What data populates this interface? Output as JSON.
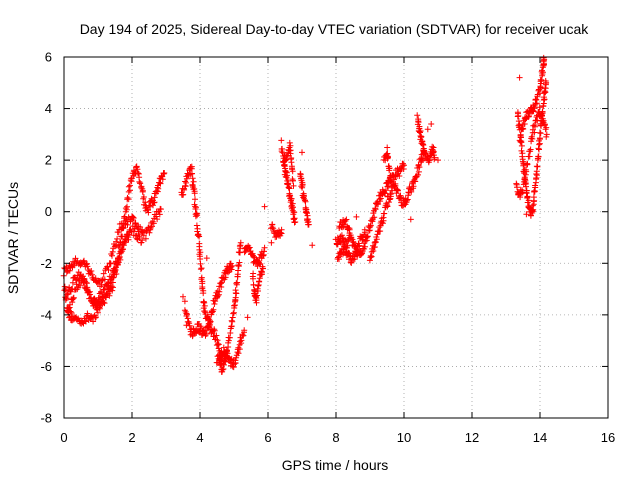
{
  "chart_data": {
    "type": "scatter",
    "title": "Day 194 of 2025, Sidereal Day-to-day VTEC variation (SDTVAR) for receiver ucak",
    "xlabel": "GPS time / hours",
    "ylabel": "SDTVAR / TECUs",
    "xlim": [
      0,
      16
    ],
    "ylim": [
      -8,
      6
    ],
    "x_ticks": [
      0,
      2,
      4,
      6,
      8,
      10,
      12,
      14,
      16
    ],
    "y_ticks": [
      -8,
      -6,
      -4,
      -2,
      0,
      2,
      4,
      6
    ],
    "grid": true,
    "marker": "+",
    "series_color": "#ff0000",
    "trace_segments": [
      [
        [
          0.0,
          -2.6
        ],
        [
          0.08,
          -3.6
        ],
        [
          0.15,
          -4.0
        ],
        [
          0.25,
          -4.1
        ],
        [
          0.4,
          -4.2
        ],
        [
          0.55,
          -4.2
        ],
        [
          0.7,
          -4.1
        ],
        [
          0.85,
          -4.1
        ],
        [
          1.0,
          -3.8
        ],
        [
          1.15,
          -3.4
        ],
        [
          1.3,
          -3.0
        ],
        [
          1.45,
          -2.5
        ],
        [
          1.55,
          -2.0
        ],
        [
          1.65,
          -1.2
        ],
        [
          1.75,
          -0.5
        ],
        [
          1.85,
          0.3
        ],
        [
          1.95,
          1.0
        ],
        [
          2.05,
          1.6
        ],
        [
          2.15,
          1.6
        ],
        [
          2.25,
          1.2
        ],
        [
          2.35,
          0.5
        ],
        [
          2.45,
          0.0
        ],
        [
          2.55,
          0.3
        ],
        [
          2.65,
          0.5
        ],
        [
          2.75,
          0.9
        ],
        [
          2.85,
          1.3
        ],
        [
          2.95,
          1.5
        ]
      ],
      [
        [
          0.02,
          -2.3
        ],
        [
          0.15,
          -2.2
        ],
        [
          0.3,
          -2.0
        ],
        [
          0.45,
          -1.9
        ],
        [
          0.6,
          -2.0
        ],
        [
          0.75,
          -2.3
        ],
        [
          0.9,
          -2.6
        ],
        [
          1.05,
          -2.8
        ],
        [
          1.2,
          -2.5
        ],
        [
          1.35,
          -2.0
        ],
        [
          1.5,
          -1.3
        ],
        [
          1.65,
          -0.6
        ],
        [
          1.8,
          -0.5
        ],
        [
          1.95,
          -0.3
        ],
        [
          2.1,
          -0.4
        ],
        [
          2.25,
          -0.8
        ],
        [
          2.4,
          -0.9
        ],
        [
          2.55,
          -0.6
        ],
        [
          2.7,
          -0.2
        ],
        [
          2.85,
          0.1
        ]
      ],
      [
        [
          0.05,
          -3.3
        ],
        [
          0.2,
          -3.0
        ],
        [
          0.35,
          -2.5
        ],
        [
          0.5,
          -2.4
        ],
        [
          0.65,
          -2.9
        ],
        [
          0.8,
          -3.3
        ],
        [
          0.95,
          -3.6
        ],
        [
          1.1,
          -3.5
        ],
        [
          1.25,
          -3.3
        ],
        [
          1.4,
          -3.0
        ],
        [
          1.55,
          -2.2
        ],
        [
          1.7,
          -1.5
        ],
        [
          1.85,
          -1.0
        ],
        [
          2.0,
          -0.7
        ],
        [
          2.15,
          -0.9
        ],
        [
          2.3,
          -1.1
        ]
      ],
      [
        [
          0.1,
          -3.8
        ],
        [
          0.25,
          -3.4
        ],
        [
          0.4,
          -2.9
        ],
        [
          0.55,
          -2.6
        ],
        [
          0.7,
          -3.0
        ],
        [
          0.85,
          -3.7
        ],
        [
          1.0,
          -3.5
        ],
        [
          1.15,
          -3.1
        ],
        [
          1.3,
          -2.7
        ],
        [
          1.45,
          -2.3
        ],
        [
          1.6,
          -1.8
        ],
        [
          1.75,
          -1.2
        ],
        [
          1.9,
          -0.9
        ]
      ],
      [
        [
          3.45,
          0.6
        ],
        [
          3.55,
          1.0
        ],
        [
          3.65,
          1.4
        ],
        [
          3.75,
          1.6
        ],
        [
          3.8,
          1.0
        ],
        [
          3.85,
          0.4
        ],
        [
          3.9,
          -0.2
        ],
        [
          3.95,
          -0.9
        ],
        [
          4.0,
          -1.7
        ],
        [
          4.05,
          -2.6
        ],
        [
          4.1,
          -3.4
        ],
        [
          4.15,
          -4.0
        ],
        [
          4.25,
          -4.3
        ],
        [
          4.35,
          -4.6
        ],
        [
          4.45,
          -4.8
        ],
        [
          4.55,
          -5.3
        ],
        [
          4.6,
          -5.9
        ],
        [
          4.65,
          -6.1
        ],
        [
          4.72,
          -5.8
        ],
        [
          4.8,
          -5.3
        ],
        [
          4.9,
          -4.6
        ],
        [
          5.0,
          -3.9
        ],
        [
          5.05,
          -3.3
        ],
        [
          5.1,
          -2.6
        ],
        [
          5.15,
          -1.8
        ],
        [
          5.2,
          -1.2
        ]
      ],
      [
        [
          3.55,
          -3.6
        ],
        [
          3.65,
          -4.3
        ],
        [
          3.75,
          -4.7
        ],
        [
          3.85,
          -4.6
        ],
        [
          3.95,
          -4.5
        ],
        [
          4.05,
          -4.6
        ],
        [
          4.15,
          -4.7
        ],
        [
          4.25,
          -4.4
        ],
        [
          4.35,
          -3.9
        ],
        [
          4.45,
          -3.4
        ],
        [
          4.55,
          -3.1
        ],
        [
          4.65,
          -2.7
        ],
        [
          4.75,
          -2.4
        ],
        [
          4.85,
          -2.2
        ],
        [
          4.95,
          -2.1
        ]
      ],
      [
        [
          4.5,
          -5.8
        ],
        [
          4.6,
          -5.6
        ],
        [
          4.7,
          -5.4
        ],
        [
          4.8,
          -5.6
        ],
        [
          4.9,
          -5.8
        ],
        [
          5.0,
          -5.9
        ],
        [
          5.1,
          -5.6
        ],
        [
          5.2,
          -5.0
        ],
        [
          5.3,
          -4.6
        ]
      ],
      [
        [
          5.3,
          -1.5
        ],
        [
          5.4,
          -1.3
        ],
        [
          5.5,
          -1.6
        ],
        [
          5.6,
          -1.9
        ],
        [
          5.7,
          -2.0
        ],
        [
          5.8,
          -1.8
        ],
        [
          5.9,
          -1.4
        ]
      ],
      [
        [
          5.55,
          -2.5
        ],
        [
          5.6,
          -3.1
        ],
        [
          5.65,
          -3.5
        ],
        [
          5.72,
          -2.9
        ],
        [
          5.8,
          -2.4
        ],
        [
          5.85,
          -2.2
        ]
      ],
      [
        [
          6.1,
          -0.6
        ],
        [
          6.2,
          -0.8
        ],
        [
          6.3,
          -0.9
        ],
        [
          6.4,
          -0.7
        ]
      ],
      [
        [
          6.4,
          2.6
        ],
        [
          6.45,
          2.0
        ],
        [
          6.5,
          1.6
        ],
        [
          6.55,
          1.3
        ],
        [
          6.6,
          1.0
        ],
        [
          6.65,
          0.6
        ],
        [
          6.7,
          0.3
        ],
        [
          6.75,
          -0.1
        ],
        [
          6.8,
          -0.4
        ]
      ],
      [
        [
          6.45,
          1.9
        ],
        [
          6.55,
          2.2
        ],
        [
          6.65,
          2.5
        ],
        [
          6.7,
          1.8
        ],
        [
          6.75,
          1.0
        ]
      ],
      [
        [
          6.95,
          1.6
        ],
        [
          7.0,
          1.0
        ],
        [
          7.05,
          0.6
        ],
        [
          7.1,
          0.2
        ],
        [
          7.15,
          -0.2
        ],
        [
          7.2,
          -0.5
        ]
      ],
      [
        [
          8.0,
          -1.2
        ],
        [
          8.1,
          -1.0
        ],
        [
          8.2,
          -1.1
        ],
        [
          8.3,
          -1.3
        ],
        [
          8.4,
          -1.0
        ],
        [
          8.5,
          -1.2
        ],
        [
          8.6,
          -1.5
        ],
        [
          8.7,
          -1.7
        ],
        [
          8.8,
          -1.4
        ],
        [
          8.9,
          -1.0
        ],
        [
          9.0,
          -0.6
        ],
        [
          9.1,
          -0.1
        ],
        [
          9.2,
          0.3
        ],
        [
          9.3,
          0.6
        ],
        [
          9.4,
          0.8
        ],
        [
          9.5,
          1.0
        ],
        [
          9.6,
          1.2
        ],
        [
          9.7,
          1.4
        ],
        [
          9.8,
          1.5
        ],
        [
          9.9,
          1.6
        ],
        [
          10.0,
          1.8
        ]
      ],
      [
        [
          8.05,
          -1.8
        ],
        [
          8.15,
          -1.6
        ],
        [
          8.25,
          -1.5
        ],
        [
          8.35,
          -1.6
        ],
        [
          8.45,
          -1.9
        ],
        [
          8.55,
          -1.7
        ],
        [
          8.65,
          -1.3
        ],
        [
          8.75,
          -1.0
        ],
        [
          8.85,
          -0.8
        ]
      ],
      [
        [
          8.1,
          -0.6
        ],
        [
          8.2,
          -0.5
        ],
        [
          8.3,
          -0.4
        ],
        [
          8.4,
          -0.7
        ]
      ],
      [
        [
          9.0,
          -1.8
        ],
        [
          9.1,
          -1.4
        ],
        [
          9.2,
          -1.0
        ],
        [
          9.3,
          -0.6
        ],
        [
          9.4,
          -0.2
        ],
        [
          9.5,
          0.3
        ],
        [
          9.6,
          0.7
        ],
        [
          9.7,
          1.0
        ],
        [
          9.8,
          0.8
        ],
        [
          9.9,
          0.5
        ],
        [
          10.0,
          0.3
        ],
        [
          10.1,
          0.6
        ],
        [
          10.2,
          0.9
        ],
        [
          10.3,
          1.2
        ],
        [
          10.4,
          1.6
        ],
        [
          10.5,
          2.0
        ],
        [
          10.6,
          2.3
        ]
      ],
      [
        [
          9.4,
          2.0
        ],
        [
          9.5,
          2.4
        ],
        [
          9.55,
          1.8
        ],
        [
          9.6,
          1.2
        ]
      ],
      [
        [
          10.4,
          3.6
        ],
        [
          10.45,
          3.2
        ],
        [
          10.5,
          2.8
        ],
        [
          10.55,
          2.5
        ],
        [
          10.6,
          2.2
        ],
        [
          10.7,
          2.0
        ],
        [
          10.8,
          2.2
        ],
        [
          10.85,
          2.5
        ],
        [
          10.9,
          2.1
        ]
      ],
      [
        [
          13.35,
          3.8
        ],
        [
          13.4,
          3.3
        ],
        [
          13.45,
          2.7
        ],
        [
          13.5,
          2.0
        ],
        [
          13.55,
          1.3
        ],
        [
          13.6,
          0.8
        ],
        [
          13.65,
          0.4
        ],
        [
          13.7,
          0.0
        ],
        [
          13.75,
          -0.1
        ],
        [
          13.8,
          0.2
        ],
        [
          13.85,
          0.8
        ],
        [
          13.9,
          1.5
        ],
        [
          13.95,
          2.2
        ],
        [
          14.0,
          2.9
        ],
        [
          14.05,
          3.6
        ],
        [
          14.1,
          4.2
        ],
        [
          14.15,
          4.6
        ],
        [
          14.18,
          5.0
        ]
      ],
      [
        [
          13.4,
          2.8
        ],
        [
          13.5,
          3.3
        ],
        [
          13.6,
          3.7
        ],
        [
          13.7,
          3.9
        ],
        [
          13.8,
          4.0
        ],
        [
          13.9,
          4.3
        ],
        [
          14.0,
          4.8
        ],
        [
          14.05,
          5.2
        ],
        [
          14.1,
          5.6
        ],
        [
          14.12,
          5.9
        ]
      ],
      [
        [
          13.3,
          1.0
        ],
        [
          13.4,
          0.7
        ],
        [
          13.5,
          0.9
        ],
        [
          13.6,
          1.6
        ],
        [
          13.7,
          2.4
        ],
        [
          13.8,
          3.1
        ],
        [
          13.9,
          3.6
        ],
        [
          14.0,
          3.9
        ],
        [
          14.1,
          3.5
        ],
        [
          14.2,
          3.0
        ]
      ]
    ],
    "scattered_points": [
      [
        3.5,
        -3.3
      ],
      [
        3.6,
        -4.4
      ],
      [
        4.2,
        -1.8
      ],
      [
        5.4,
        -4.1
      ],
      [
        5.9,
        0.2
      ],
      [
        6.1,
        -1.2
      ],
      [
        6.6,
        2.4
      ],
      [
        7.0,
        2.3
      ],
      [
        7.3,
        -1.3
      ],
      [
        8.6,
        -0.2
      ],
      [
        10.7,
        3.2
      ],
      [
        10.8,
        3.4
      ],
      [
        10.2,
        -0.3
      ],
      [
        11.0,
        2.0
      ],
      [
        13.4,
        5.2
      ],
      [
        13.6,
        -0.1
      ]
    ]
  }
}
